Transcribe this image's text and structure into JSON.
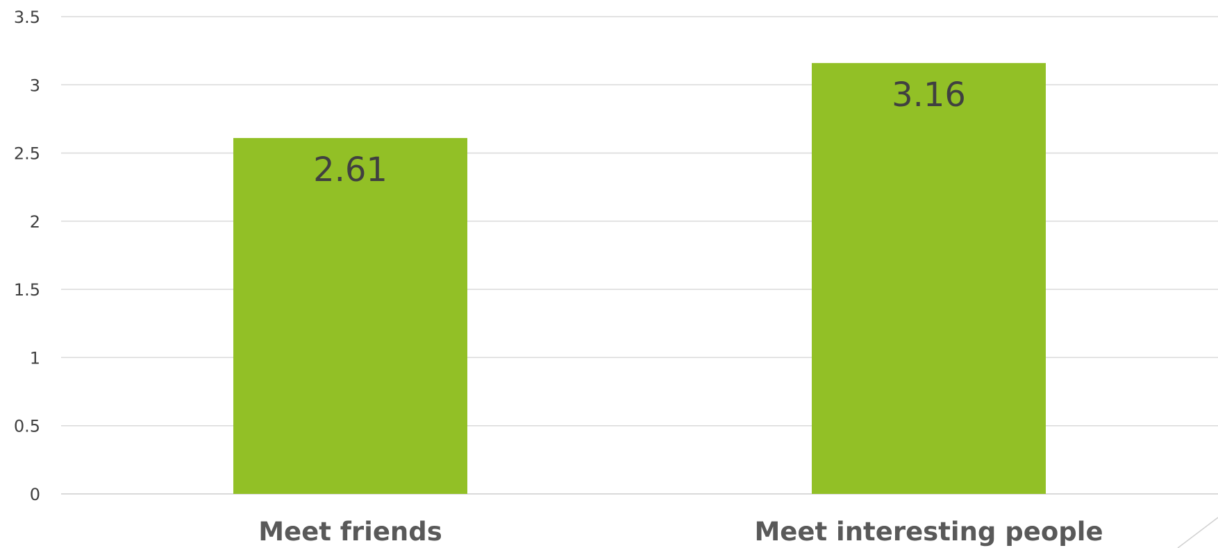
{
  "chart_data": {
    "type": "bar",
    "title": "",
    "xlabel": "",
    "ylabel": "",
    "categories": [
      "Meet friends",
      "Meet interesting people"
    ],
    "values": [
      2.61,
      3.16
    ],
    "data_labels": [
      "2.61",
      "3.16"
    ],
    "ylim": [
      0,
      3.5
    ],
    "yticks": [
      0,
      0.5,
      1,
      1.5,
      2,
      2.5,
      3,
      3.5
    ],
    "ytick_labels": [
      "0",
      "0.5",
      "1",
      "1.5",
      "2",
      "2.5",
      "3",
      "3.5"
    ],
    "grid": true,
    "legend": "none",
    "bar_color": "#92c026",
    "grid_color": "#d9d9d9",
    "label_color": "#404040"
  }
}
